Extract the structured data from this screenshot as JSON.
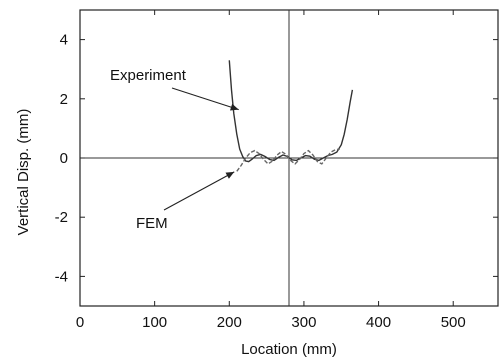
{
  "chart_data": {
    "type": "line",
    "title": "",
    "xlabel": "Location (mm)",
    "ylabel": "Vertical Disp. (mm)",
    "xlim": [
      0,
      560
    ],
    "ylim": [
      -5,
      5
    ],
    "xticks": [
      0,
      100,
      200,
      300,
      400,
      500
    ],
    "yticks": [
      -4,
      -2,
      0,
      2,
      4
    ],
    "grid": false,
    "reference_lines": {
      "horizontal_y": 0,
      "vertical_x": 280
    },
    "series": [
      {
        "name": "Experiment",
        "style": "solid",
        "color": "#333333",
        "x": [
          200,
          203,
          206,
          210,
          214,
          218,
          222,
          226,
          230,
          236,
          242,
          248,
          254,
          260,
          266,
          272,
          278,
          284,
          290,
          296,
          302,
          308,
          314,
          320,
          326,
          332,
          338,
          344,
          350,
          354,
          358,
          362,
          365
        ],
        "y": [
          3.3,
          2.3,
          1.5,
          0.8,
          0.3,
          0.05,
          -0.1,
          -0.12,
          -0.05,
          0.08,
          0.12,
          0.05,
          -0.05,
          -0.08,
          0.02,
          0.1,
          0.05,
          -0.06,
          -0.08,
          0.0,
          0.08,
          0.06,
          -0.04,
          -0.08,
          0.0,
          0.08,
          0.12,
          0.2,
          0.45,
          0.8,
          1.3,
          1.9,
          2.3
        ]
      },
      {
        "name": "FEM",
        "style": "dashed",
        "color": "#666666",
        "x": [
          210,
          216,
          222,
          228,
          234,
          240,
          246,
          252,
          258,
          264,
          270,
          276,
          282,
          288,
          294,
          300,
          306,
          312,
          318,
          324,
          330,
          336,
          342,
          348
        ],
        "y": [
          -0.45,
          -0.25,
          0.0,
          0.18,
          0.25,
          0.15,
          -0.05,
          -0.2,
          -0.1,
          0.1,
          0.22,
          0.12,
          -0.08,
          -0.2,
          -0.05,
          0.15,
          0.25,
          0.1,
          -0.12,
          -0.2,
          0.0,
          0.2,
          0.28,
          0.3
        ]
      }
    ],
    "annotations": [
      {
        "label": "Experiment",
        "series": "Experiment",
        "points_to": [
          218,
          1.5
        ]
      },
      {
        "label": "FEM",
        "series": "FEM",
        "points_to": [
          212,
          -0.4
        ]
      }
    ]
  }
}
